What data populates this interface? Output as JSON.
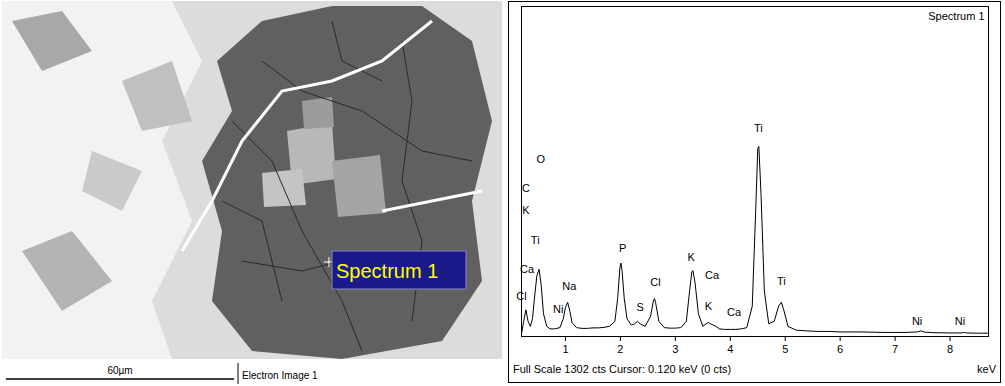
{
  "micrograph": {
    "label": "Spectrum 1",
    "scale_bar": "60µm",
    "caption": "Electron Image 1"
  },
  "chart_data": {
    "type": "line",
    "title": "Spectrum 1",
    "footer": "Full Scale 1302 cts Cursor: 0.120 keV (0 cts)",
    "xlabel": "keV",
    "color": "#000000",
    "x": [
      0.2,
      0.24,
      0.28,
      0.32,
      0.36,
      0.4,
      0.44,
      0.48,
      0.52,
      0.56,
      0.6,
      0.66,
      0.72,
      0.8,
      0.9,
      0.96,
      1.0,
      1.04,
      1.08,
      1.12,
      1.2,
      1.3,
      1.4,
      1.5,
      1.6,
      1.7,
      1.8,
      1.9,
      1.95,
      1.99,
      2.01,
      2.03,
      2.07,
      2.12,
      2.2,
      2.26,
      2.31,
      2.36,
      2.45,
      2.55,
      2.6,
      2.62,
      2.64,
      2.7,
      2.8,
      2.9,
      3.0,
      3.1,
      3.2,
      3.26,
      3.3,
      3.32,
      3.36,
      3.42,
      3.5,
      3.56,
      3.6,
      3.64,
      3.69,
      3.74,
      3.8,
      3.9,
      4.0,
      4.1,
      4.2,
      4.3,
      4.4,
      4.46,
      4.5,
      4.52,
      4.56,
      4.62,
      4.7,
      4.8,
      4.88,
      4.93,
      4.98,
      5.05,
      5.2,
      5.4,
      5.6,
      5.8,
      6.0,
      6.2,
      6.4,
      6.6,
      6.8,
      7.0,
      7.2,
      7.4,
      7.47,
      7.54,
      7.7,
      8.0,
      8.2,
      8.26,
      8.3,
      8.5,
      8.7
    ],
    "values": [
      10,
      60,
      105,
      60,
      40,
      70,
      160,
      240,
      265,
      200,
      90,
      40,
      30,
      30,
      35,
      70,
      115,
      135,
      100,
      55,
      35,
      32,
      32,
      34,
      34,
      36,
      40,
      60,
      150,
      270,
      290,
      260,
      150,
      70,
      45,
      50,
      60,
      50,
      40,
      80,
      140,
      150,
      135,
      60,
      35,
      33,
      33,
      35,
      60,
      180,
      255,
      260,
      210,
      90,
      40,
      50,
      55,
      50,
      45,
      40,
      30,
      28,
      28,
      28,
      30,
      35,
      120,
      480,
      740,
      750,
      560,
      180,
      50,
      60,
      120,
      135,
      100,
      40,
      25,
      22,
      20,
      20,
      18,
      18,
      18,
      17,
      16,
      16,
      16,
      18,
      22,
      17,
      15,
      14,
      14,
      16,
      14,
      13,
      13
    ],
    "xlim": [
      0.2,
      8.7
    ],
    "xticks": [
      1,
      2,
      3,
      4,
      5,
      6,
      7,
      8
    ],
    "ylim": [
      0,
      1302
    ],
    "tick_labels": "x",
    "annotations": [
      {
        "text": "C",
        "x": 0.28,
        "y": 586
      },
      {
        "text": "O",
        "x": 0.55,
        "y": 700
      },
      {
        "text": "K",
        "x": 0.28,
        "y": 496
      },
      {
        "text": "Ti",
        "x": 0.45,
        "y": 380
      },
      {
        "text": "Ca",
        "x": 0.3,
        "y": 266
      },
      {
        "text": "Cl",
        "x": 0.2,
        "y": 156
      },
      {
        "text": "Na",
        "x": 1.07,
        "y": 197
      },
      {
        "text": "Ni",
        "x": 0.87,
        "y": 107
      },
      {
        "text": "P",
        "x": 2.04,
        "y": 348
      },
      {
        "text": "S",
        "x": 2.36,
        "y": 115
      },
      {
        "text": "Cl",
        "x": 2.64,
        "y": 213
      },
      {
        "text": "K",
        "x": 3.29,
        "y": 310
      },
      {
        "text": "Ca",
        "x": 3.67,
        "y": 242
      },
      {
        "text": "K",
        "x": 3.6,
        "y": 119
      },
      {
        "text": "Ca",
        "x": 4.07,
        "y": 94
      },
      {
        "text": "Ti",
        "x": 4.51,
        "y": 820
      },
      {
        "text": "Ti",
        "x": 4.93,
        "y": 217
      },
      {
        "text": "Ni",
        "x": 7.4,
        "y": 60
      },
      {
        "text": "Ni",
        "x": 8.18,
        "y": 60
      }
    ]
  }
}
